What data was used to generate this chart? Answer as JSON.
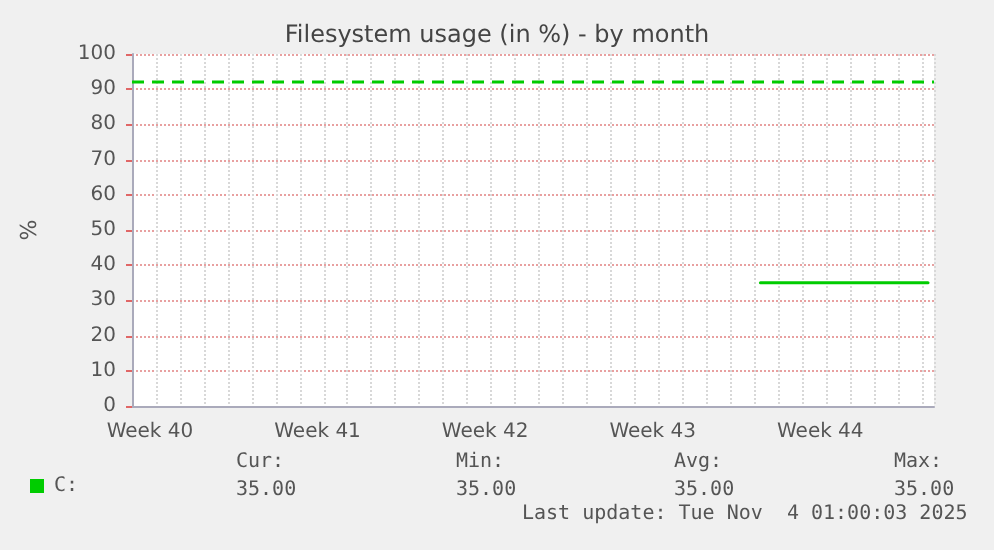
{
  "chart_data": {
    "type": "line",
    "title": "Filesystem usage (in %) - by month",
    "ylabel": "%",
    "categories": [
      null,
      "Week 40",
      null,
      null,
      null,
      null,
      null,
      null,
      null,
      null,
      null,
      null,
      null,
      null,
      null,
      "Week 41",
      null,
      null,
      null,
      null,
      null,
      null,
      null,
      null,
      null,
      null,
      null,
      null,
      null,
      "Week 42",
      null,
      null,
      null,
      null,
      null,
      null,
      null,
      null,
      null,
      null,
      null,
      null,
      null,
      "Week 43",
      null,
      null,
      null,
      null,
      null,
      null,
      null,
      null,
      null,
      null,
      null,
      null,
      null,
      "Week 44",
      null,
      null,
      null,
      null,
      null,
      null,
      null,
      null,
      null
    ],
    "series": [
      {
        "name": "C:",
        "color": "#00cc00",
        "values": [
          null,
          null,
          null,
          null,
          null,
          null,
          null,
          null,
          null,
          null,
          null,
          null,
          null,
          null,
          null,
          null,
          null,
          null,
          null,
          null,
          null,
          null,
          null,
          null,
          null,
          null,
          null,
          null,
          null,
          null,
          null,
          null,
          null,
          null,
          null,
          null,
          null,
          null,
          null,
          null,
          null,
          null,
          null,
          null,
          null,
          null,
          null,
          null,
          null,
          null,
          null,
          null,
          35,
          35,
          35,
          35,
          35,
          35,
          35,
          35,
          35,
          35,
          35,
          35,
          35,
          35,
          35
        ]
      }
    ],
    "ylim": [
      0,
      100
    ],
    "yticks": [
      0,
      10,
      20,
      30,
      40,
      50,
      60,
      70,
      80,
      90,
      100
    ],
    "ref_lines": [
      {
        "axis": "y",
        "value": 92,
        "label": null,
        "color": "#00cc00",
        "line_style": "dashed"
      }
    ],
    "grid": true,
    "legend": "bottom left",
    "marker": "none",
    "line_style": "solid",
    "annotations": [
      "Cur:",
      "Min:",
      "Avg:",
      "Max:",
      "35.00",
      "35.00",
      "35.00",
      "35.00",
      "Last update: Tue Nov  4 01:00:03 2025"
    ]
  }
}
